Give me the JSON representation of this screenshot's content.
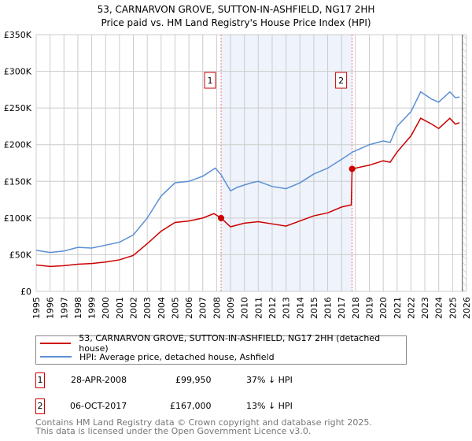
{
  "chart_data": {
    "type": "line",
    "title": "53, CARNARVON GROVE, SUTTON-IN-ASHFIELD, NG17 2HH",
    "subtitle": "Price paid vs. HM Land Registry's House Price Index (HPI)",
    "xlim": [
      1995,
      2026
    ],
    "ylim": [
      0,
      350000
    ],
    "yticks": [
      0,
      50000,
      100000,
      150000,
      200000,
      250000,
      300000,
      350000
    ],
    "ytick_labels": [
      "£0",
      "£50K",
      "£100K",
      "£150K",
      "£200K",
      "£250K",
      "£300K",
      "£350K"
    ],
    "xticks": [
      1995,
      1996,
      1997,
      1998,
      1999,
      2000,
      2001,
      2002,
      2003,
      2004,
      2005,
      2006,
      2007,
      2008,
      2009,
      2010,
      2011,
      2012,
      2013,
      2014,
      2015,
      2016,
      2017,
      2018,
      2019,
      2020,
      2021,
      2022,
      2023,
      2024,
      2025,
      2026
    ],
    "grid": true,
    "shaded_range": [
      2008.32,
      2017.76
    ],
    "forecast_from": 2025.7,
    "series": [
      {
        "name": "53, CARNARVON GROVE, SUTTON-IN-ASHFIELD, NG17 2HH (detached house)",
        "color": "#cc0000",
        "x": [
          1995,
          1996,
          1997,
          1998,
          1999,
          2000,
          2001,
          2002,
          2003,
          2004,
          2005,
          2006,
          2007,
          2007.8,
          2008.32,
          2009,
          2010,
          2011,
          2012,
          2013,
          2014,
          2015,
          2016,
          2017,
          2017.7,
          2017.76,
          2019,
          2020,
          2020.5,
          2021,
          2022,
          2022.7,
          2023.5,
          2024,
          2024.8,
          2025.2,
          2025.5
        ],
        "y": [
          36000,
          34000,
          35000,
          37000,
          38000,
          40000,
          43000,
          49000,
          65000,
          82000,
          94000,
          96000,
          100000,
          106000,
          99950,
          88000,
          93000,
          95000,
          92000,
          89000,
          96000,
          103000,
          107000,
          115000,
          118000,
          167000,
          172000,
          178000,
          176000,
          190000,
          212000,
          236000,
          228000,
          222000,
          236000,
          228000,
          230000
        ]
      },
      {
        "name": "HPI: Average price, detached house, Ashfield",
        "color": "#5b8fd4",
        "x": [
          1995,
          1996,
          1997,
          1998,
          1999,
          2000,
          2001,
          2002,
          2003,
          2004,
          2005,
          2006,
          2007,
          2007.9,
          2008.32,
          2009,
          2009.5,
          2010.5,
          2011,
          2012,
          2013,
          2014,
          2015,
          2016,
          2017,
          2017.8,
          2019,
          2020,
          2020.5,
          2021,
          2022,
          2022.7,
          2023.5,
          2024,
          2024.8,
          2025.2,
          2025.5
        ],
        "y": [
          56000,
          53000,
          55000,
          60000,
          59000,
          63000,
          67000,
          77000,
          100000,
          130000,
          148000,
          150000,
          157000,
          168000,
          159000,
          137000,
          142000,
          148000,
          150000,
          143000,
          140000,
          148000,
          160000,
          168000,
          180000,
          190000,
          200000,
          205000,
          203000,
          225000,
          245000,
          272000,
          262000,
          258000,
          272000,
          264000,
          265000
        ]
      }
    ],
    "annotations": [
      {
        "label": "1",
        "x": 2008.32,
        "y": 99950
      },
      {
        "label": "2",
        "x": 2017.76,
        "y": 167000
      }
    ]
  },
  "legend": {
    "items": [
      "53, CARNARVON GROVE, SUTTON-IN-ASHFIELD, NG17 2HH (detached house)",
      "HPI: Average price, detached house, Ashfield"
    ]
  },
  "transactions": [
    {
      "num": "1",
      "date": "28-APR-2008",
      "price": "£99,950",
      "hpi": "37% ↓ HPI"
    },
    {
      "num": "2",
      "date": "06-OCT-2017",
      "price": "£167,000",
      "hpi": "13% ↓ HPI"
    }
  ],
  "footer": {
    "line1": "Contains HM Land Registry data © Crown copyright and database right 2025.",
    "line2": "This data is licensed under the Open Government Licence v3.0."
  }
}
